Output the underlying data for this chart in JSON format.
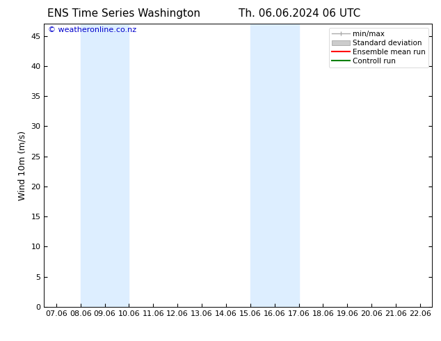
{
  "title_left": "ENS Time Series Washington",
  "title_right": "Th. 06.06.2024 06 UTC",
  "ylabel": "Wind 10m (m/s)",
  "watermark": "© weatheronline.co.nz",
  "xlim_start": 6.5,
  "xlim_end": 22.5,
  "ylim": [
    0,
    47
  ],
  "yticks": [
    0,
    5,
    10,
    15,
    20,
    25,
    30,
    35,
    40,
    45
  ],
  "xtick_labels": [
    "07.06",
    "08.06",
    "09.06",
    "10.06",
    "11.06",
    "12.06",
    "13.06",
    "14.06",
    "15.06",
    "16.06",
    "17.06",
    "18.06",
    "19.06",
    "20.06",
    "21.06",
    "22.06"
  ],
  "xtick_positions": [
    7,
    8,
    9,
    10,
    11,
    12,
    13,
    14,
    15,
    16,
    17,
    18,
    19,
    20,
    21,
    22
  ],
  "shaded_regions": [
    {
      "x_start": 8.0,
      "x_end": 10.0,
      "color": "#ddeeff"
    },
    {
      "x_start": 15.0,
      "x_end": 17.0,
      "color": "#ddeeff"
    }
  ],
  "legend_labels": [
    "min/max",
    "Standard deviation",
    "Ensemble mean run",
    "Controll run"
  ],
  "legend_colors": [
    "#aaaaaa",
    "#cccccc",
    "#ff0000",
    "#008000"
  ],
  "background_color": "#ffffff",
  "plot_bg_color": "#ffffff",
  "title_fontsize": 11,
  "axis_label_fontsize": 9,
  "tick_fontsize": 8,
  "legend_fontsize": 7.5,
  "watermark_color": "#0000cc",
  "watermark_fontsize": 8
}
